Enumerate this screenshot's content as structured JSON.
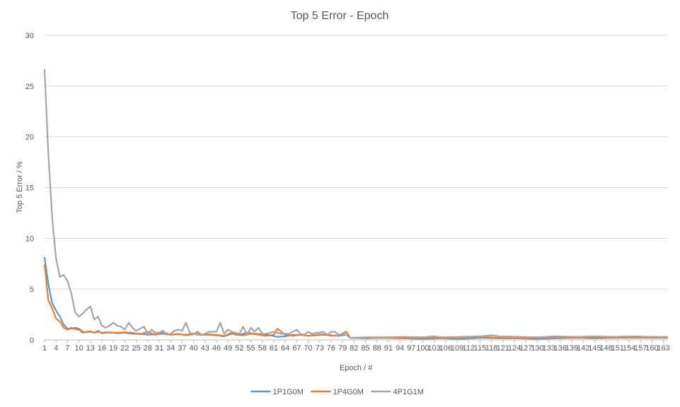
{
  "chart_data": {
    "type": "line",
    "title": "Top 5 Error - Epoch",
    "xlabel": "Epoch / #",
    "ylabel": "Top 5 Error / %",
    "ylim": [
      0,
      30
    ],
    "yticks": [
      0,
      5,
      10,
      15,
      20,
      25,
      30
    ],
    "x_range": [
      1,
      164
    ],
    "xtick_labels": [
      "1",
      "4",
      "7",
      "10",
      "13",
      "16",
      "19",
      "22",
      "25",
      "28",
      "31",
      "34",
      "37",
      "40",
      "43",
      "46",
      "49",
      "52",
      "55",
      "58",
      "61",
      "64",
      "67",
      "70",
      "73",
      "76",
      "79",
      "82",
      "85",
      "88",
      "91",
      "94",
      "97",
      "100",
      "103",
      "106",
      "109",
      "112",
      "115",
      "118",
      "121",
      "124",
      "127",
      "130",
      "133",
      "136",
      "139",
      "142",
      "145",
      "148",
      "151",
      "154",
      "157",
      "160",
      "163"
    ],
    "grid": "horizontal",
    "legend_position": "bottom",
    "series": [
      {
        "name": "1P1G0M",
        "color": "#5B9BD5",
        "points": [
          [
            1,
            8.1
          ],
          [
            2,
            5.5
          ],
          [
            3,
            3.6
          ],
          [
            4,
            2.9
          ],
          [
            5,
            2.3
          ],
          [
            6,
            1.5
          ],
          [
            7,
            1.1
          ],
          [
            8,
            1.1
          ],
          [
            9,
            1.2
          ],
          [
            10,
            1.1
          ],
          [
            11,
            0.8
          ],
          [
            12,
            0.75
          ],
          [
            13,
            0.8
          ],
          [
            14,
            0.7
          ],
          [
            15,
            0.8
          ],
          [
            16,
            0.7
          ],
          [
            17,
            0.75
          ],
          [
            18,
            0.7
          ],
          [
            19,
            0.7
          ],
          [
            20,
            0.65
          ],
          [
            22,
            0.7
          ],
          [
            24,
            0.6
          ],
          [
            26,
            0.6
          ],
          [
            28,
            0.5
          ],
          [
            30,
            0.55
          ],
          [
            32,
            0.6
          ],
          [
            34,
            0.5
          ],
          [
            36,
            0.55
          ],
          [
            38,
            0.5
          ],
          [
            40,
            0.6
          ],
          [
            42,
            0.5
          ],
          [
            44,
            0.5
          ],
          [
            46,
            0.45
          ],
          [
            48,
            0.35
          ],
          [
            50,
            0.6
          ],
          [
            52,
            0.5
          ],
          [
            54,
            0.7
          ],
          [
            56,
            0.6
          ],
          [
            58,
            0.55
          ],
          [
            60,
            0.45
          ],
          [
            62,
            0.3
          ],
          [
            64,
            0.35
          ],
          [
            66,
            0.5
          ],
          [
            68,
            0.5
          ],
          [
            70,
            0.4
          ],
          [
            72,
            0.45
          ],
          [
            74,
            0.5
          ],
          [
            76,
            0.45
          ],
          [
            78,
            0.4
          ],
          [
            80,
            0.5
          ],
          [
            81,
            0.2
          ],
          [
            85,
            0.15
          ],
          [
            90,
            0.2
          ],
          [
            95,
            0.15
          ],
          [
            100,
            0.1
          ],
          [
            105,
            0.15
          ],
          [
            110,
            0.1
          ],
          [
            115,
            0.2
          ],
          [
            120,
            0.15
          ],
          [
            125,
            0.15
          ],
          [
            130,
            0.1
          ],
          [
            135,
            0.15
          ],
          [
            140,
            0.2
          ],
          [
            145,
            0.15
          ],
          [
            150,
            0.2
          ],
          [
            155,
            0.2
          ],
          [
            160,
            0.2
          ],
          [
            164,
            0.2
          ]
        ]
      },
      {
        "name": "1P4G0M",
        "color": "#ED7D31",
        "points": [
          [
            1,
            7.4
          ],
          [
            2,
            3.9
          ],
          [
            3,
            3.1
          ],
          [
            4,
            2.1
          ],
          [
            5,
            1.8
          ],
          [
            6,
            1.2
          ],
          [
            7,
            1.0
          ],
          [
            8,
            1.2
          ],
          [
            9,
            1.05
          ],
          [
            10,
            1.0
          ],
          [
            11,
            0.7
          ],
          [
            12,
            0.8
          ],
          [
            13,
            0.85
          ],
          [
            14,
            0.7
          ],
          [
            15,
            0.9
          ],
          [
            16,
            0.65
          ],
          [
            17,
            0.7
          ],
          [
            18,
            0.75
          ],
          [
            19,
            0.7
          ],
          [
            20,
            0.7
          ],
          [
            22,
            0.75
          ],
          [
            24,
            0.7
          ],
          [
            26,
            0.55
          ],
          [
            28,
            0.8
          ],
          [
            30,
            0.5
          ],
          [
            32,
            0.75
          ],
          [
            34,
            0.5
          ],
          [
            36,
            0.6
          ],
          [
            38,
            0.45
          ],
          [
            40,
            0.55
          ],
          [
            41,
            0.8
          ],
          [
            42,
            0.5
          ],
          [
            44,
            0.55
          ],
          [
            46,
            0.5
          ],
          [
            48,
            0.4
          ],
          [
            50,
            0.7
          ],
          [
            51,
            0.5
          ],
          [
            53,
            0.45
          ],
          [
            55,
            0.6
          ],
          [
            57,
            0.5
          ],
          [
            59,
            0.4
          ],
          [
            61,
            0.5
          ],
          [
            62,
            1.1
          ],
          [
            64,
            0.5
          ],
          [
            66,
            0.4
          ],
          [
            68,
            0.5
          ],
          [
            70,
            0.4
          ],
          [
            72,
            0.5
          ],
          [
            74,
            0.55
          ],
          [
            76,
            0.4
          ],
          [
            78,
            0.45
          ],
          [
            80,
            0.8
          ],
          [
            81,
            0.2
          ],
          [
            85,
            0.2
          ],
          [
            90,
            0.2
          ],
          [
            95,
            0.15
          ],
          [
            100,
            0.2
          ],
          [
            105,
            0.2
          ],
          [
            110,
            0.2
          ],
          [
            115,
            0.3
          ],
          [
            120,
            0.2
          ],
          [
            125,
            0.15
          ],
          [
            130,
            0.2
          ],
          [
            135,
            0.25
          ],
          [
            140,
            0.2
          ],
          [
            145,
            0.25
          ],
          [
            150,
            0.2
          ],
          [
            155,
            0.25
          ],
          [
            160,
            0.2
          ],
          [
            164,
            0.25
          ]
        ]
      },
      {
        "name": "4P1G1M",
        "color": "#A5A5A5",
        "points": [
          [
            1,
            26.6
          ],
          [
            2,
            18.2
          ],
          [
            3,
            12.0
          ],
          [
            4,
            8.0
          ],
          [
            5,
            6.2
          ],
          [
            6,
            6.4
          ],
          [
            7,
            5.8
          ],
          [
            8,
            4.6
          ],
          [
            9,
            2.7
          ],
          [
            10,
            2.3
          ],
          [
            11,
            2.6
          ],
          [
            12,
            3.0
          ],
          [
            13,
            3.3
          ],
          [
            14,
            2.0
          ],
          [
            15,
            2.3
          ],
          [
            16,
            1.4
          ],
          [
            17,
            1.2
          ],
          [
            18,
            1.4
          ],
          [
            19,
            1.7
          ],
          [
            20,
            1.4
          ],
          [
            21,
            1.3
          ],
          [
            22,
            1.0
          ],
          [
            23,
            1.7
          ],
          [
            24,
            1.2
          ],
          [
            25,
            0.9
          ],
          [
            26,
            1.1
          ],
          [
            27,
            1.3
          ],
          [
            28,
            0.6
          ],
          [
            29,
            1.0
          ],
          [
            30,
            0.7
          ],
          [
            31,
            0.7
          ],
          [
            32,
            0.9
          ],
          [
            33,
            0.5
          ],
          [
            34,
            0.6
          ],
          [
            35,
            0.9
          ],
          [
            36,
            1.0
          ],
          [
            37,
            0.9
          ],
          [
            38,
            1.7
          ],
          [
            39,
            0.7
          ],
          [
            40,
            0.6
          ],
          [
            41,
            0.5
          ],
          [
            42,
            0.5
          ],
          [
            43,
            0.6
          ],
          [
            44,
            0.8
          ],
          [
            45,
            0.8
          ],
          [
            46,
            0.8
          ],
          [
            47,
            1.7
          ],
          [
            48,
            0.6
          ],
          [
            49,
            1.0
          ],
          [
            50,
            0.8
          ],
          [
            51,
            0.7
          ],
          [
            52,
            0.6
          ],
          [
            53,
            1.3
          ],
          [
            54,
            0.5
          ],
          [
            55,
            1.2
          ],
          [
            56,
            0.8
          ],
          [
            57,
            1.2
          ],
          [
            58,
            0.6
          ],
          [
            59,
            0.6
          ],
          [
            60,
            0.7
          ],
          [
            61,
            0.8
          ],
          [
            62,
            0.7
          ],
          [
            63,
            0.6
          ],
          [
            64,
            0.6
          ],
          [
            65,
            0.6
          ],
          [
            66,
            0.8
          ],
          [
            67,
            1.0
          ],
          [
            68,
            0.6
          ],
          [
            69,
            0.5
          ],
          [
            70,
            0.8
          ],
          [
            71,
            0.6
          ],
          [
            72,
            0.7
          ],
          [
            73,
            0.7
          ],
          [
            74,
            0.8
          ],
          [
            75,
            0.5
          ],
          [
            76,
            0.8
          ],
          [
            77,
            0.8
          ],
          [
            78,
            0.5
          ],
          [
            79,
            0.6
          ],
          [
            80,
            0.5
          ],
          [
            81,
            0.2
          ],
          [
            85,
            0.25
          ],
          [
            90,
            0.25
          ],
          [
            95,
            0.3
          ],
          [
            100,
            0.25
          ],
          [
            103,
            0.35
          ],
          [
            105,
            0.25
          ],
          [
            110,
            0.3
          ],
          [
            115,
            0.35
          ],
          [
            118,
            0.45
          ],
          [
            120,
            0.35
          ],
          [
            125,
            0.3
          ],
          [
            130,
            0.25
          ],
          [
            135,
            0.35
          ],
          [
            140,
            0.3
          ],
          [
            145,
            0.35
          ],
          [
            150,
            0.3
          ],
          [
            155,
            0.35
          ],
          [
            160,
            0.3
          ],
          [
            164,
            0.3
          ]
        ]
      }
    ]
  }
}
